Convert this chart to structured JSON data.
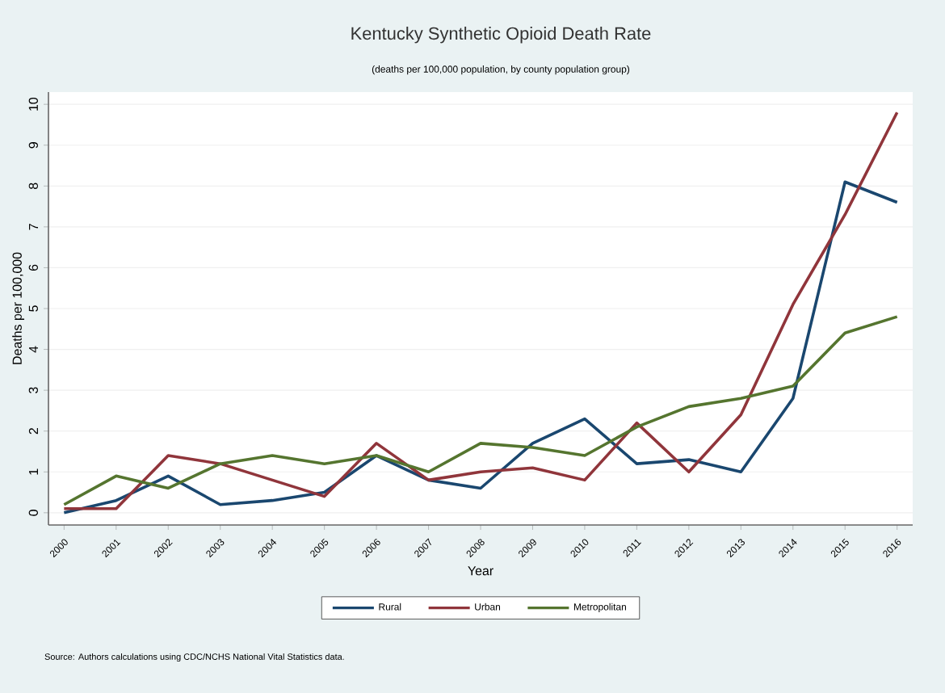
{
  "chart_data": {
    "type": "line",
    "title": "Kentucky Synthetic Opioid Death Rate",
    "subtitle": "(deaths per 100,000 population, by county population group)",
    "xlabel": "Year",
    "ylabel": "Deaths per 100,000",
    "x": [
      2000,
      2001,
      2002,
      2003,
      2004,
      2005,
      2006,
      2007,
      2008,
      2009,
      2010,
      2011,
      2012,
      2013,
      2014,
      2015,
      2016
    ],
    "series": [
      {
        "name": "Rural",
        "color": "#1a476f",
        "values": [
          0.0,
          0.3,
          0.9,
          0.2,
          0.3,
          0.5,
          1.4,
          0.8,
          0.6,
          1.7,
          2.3,
          1.2,
          1.3,
          1.0,
          2.8,
          8.1,
          7.6
        ]
      },
      {
        "name": "Urban",
        "color": "#90353b",
        "values": [
          0.1,
          0.1,
          1.4,
          1.2,
          0.8,
          0.4,
          1.7,
          0.8,
          1.0,
          1.1,
          0.8,
          2.2,
          1.0,
          2.4,
          5.1,
          7.3,
          9.8
        ]
      },
      {
        "name": "Metropolitan",
        "color": "#55752f",
        "values": [
          0.2,
          0.9,
          0.6,
          1.2,
          1.4,
          1.2,
          1.4,
          1.0,
          1.7,
          1.6,
          1.4,
          2.1,
          2.6,
          2.8,
          3.1,
          4.4,
          4.8
        ]
      }
    ],
    "xlim": [
      1999.7,
      2016.3
    ],
    "ylim": [
      -0.3,
      10.3
    ],
    "xticks": [
      2000,
      2001,
      2002,
      2003,
      2004,
      2005,
      2006,
      2007,
      2008,
      2009,
      2010,
      2011,
      2012,
      2013,
      2014,
      2015,
      2016
    ],
    "yticks": [
      0,
      1,
      2,
      3,
      4,
      5,
      6,
      7,
      8,
      9,
      10
    ],
    "grid": "y",
    "legend": "bottom",
    "marker": "none",
    "line_style": "solid",
    "annotations": [
      "Source:  Authors calculations using CDC/NCHS National Vital Statistics data."
    ]
  }
}
